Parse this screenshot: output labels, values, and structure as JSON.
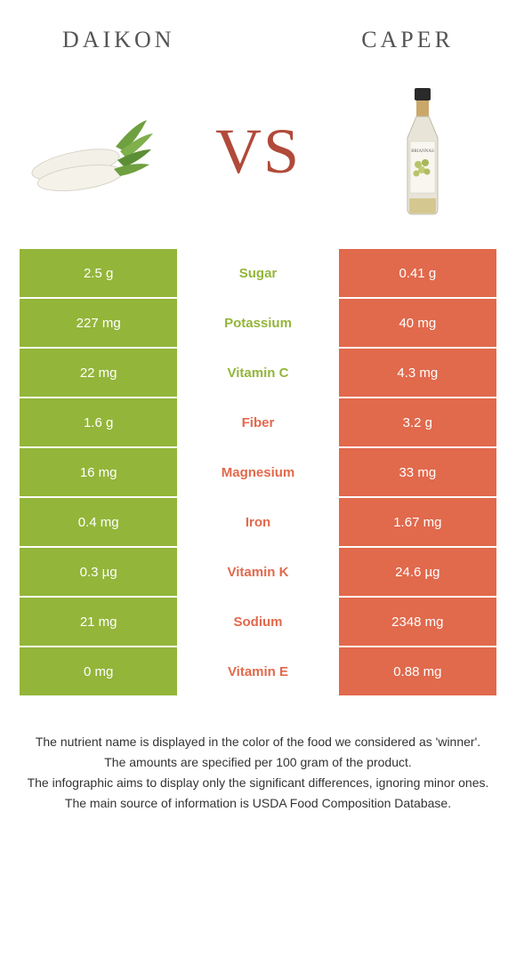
{
  "header": {
    "left_title": "DAIKON",
    "right_title": "CAPER"
  },
  "vs_label": "VS",
  "colors": {
    "left_bg": "#93b53a",
    "right_bg": "#e1694c",
    "left_text": "#93b53a",
    "right_text": "#e1694c",
    "row_border": "#ffffff"
  },
  "rows": [
    {
      "left": "2.5 g",
      "label": "Sugar",
      "right": "0.41 g",
      "winner": "left"
    },
    {
      "left": "227 mg",
      "label": "Potassium",
      "right": "40 mg",
      "winner": "left"
    },
    {
      "left": "22 mg",
      "label": "Vitamin C",
      "right": "4.3 mg",
      "winner": "left"
    },
    {
      "left": "1.6 g",
      "label": "Fiber",
      "right": "3.2 g",
      "winner": "right"
    },
    {
      "left": "16 mg",
      "label": "Magnesium",
      "right": "33 mg",
      "winner": "right"
    },
    {
      "left": "0.4 mg",
      "label": "Iron",
      "right": "1.67 mg",
      "winner": "right"
    },
    {
      "left": "0.3 µg",
      "label": "Vitamin K",
      "right": "24.6 µg",
      "winner": "right"
    },
    {
      "left": "21 mg",
      "label": "Sodium",
      "right": "2348 mg",
      "winner": "right"
    },
    {
      "left": "0 mg",
      "label": "Vitamin E",
      "right": "0.88 mg",
      "winner": "right"
    }
  ],
  "footnote": {
    "line1": "The nutrient name is displayed in the color of the food we considered as 'winner'.",
    "line2": "The amounts are specified per 100 gram of the product.",
    "line3": "The infographic aims to display only the significant differences, ignoring minor ones.",
    "line4": "The main source of information is USDA Food Composition Database."
  }
}
